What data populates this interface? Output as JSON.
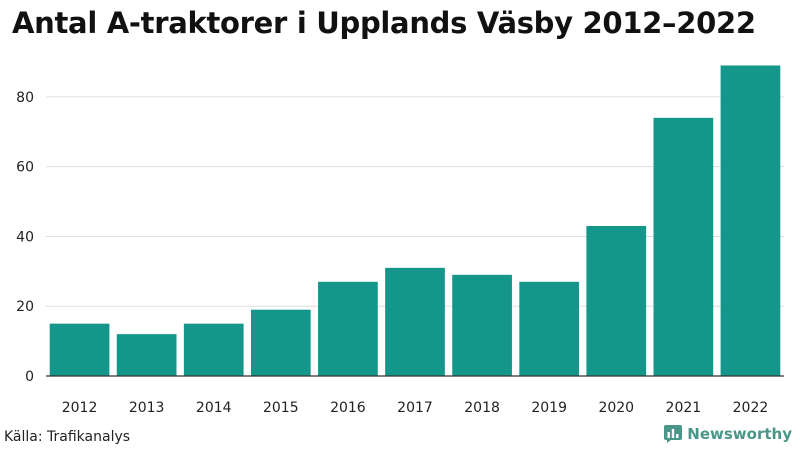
{
  "title": "Antal A-traktorer i Upplands Väsby 2012–2022",
  "source": "Källa: Trafikanalys",
  "brand": {
    "name": "Newsworthy",
    "icon": "newsworthy-logo-icon",
    "color": "#4a9688"
  },
  "colors": {
    "bar": "#14968a",
    "grid": "#dddddd",
    "axis": "#333333",
    "text": "#222222"
  },
  "chart_data": {
    "type": "bar",
    "title": "Antal A-traktorer i Upplands Väsby 2012–2022",
    "categories": [
      "2012",
      "2013",
      "2014",
      "2015",
      "2016",
      "2017",
      "2018",
      "2019",
      "2020",
      "2021",
      "2022"
    ],
    "values": [
      15,
      12,
      15,
      19,
      27,
      31,
      29,
      27,
      43,
      74,
      89
    ],
    "ylim": [
      0,
      90
    ],
    "yticks": [
      0,
      20,
      40,
      60,
      80
    ],
    "xlabel": "",
    "ylabel": "",
    "grid": true,
    "legend": "none"
  }
}
